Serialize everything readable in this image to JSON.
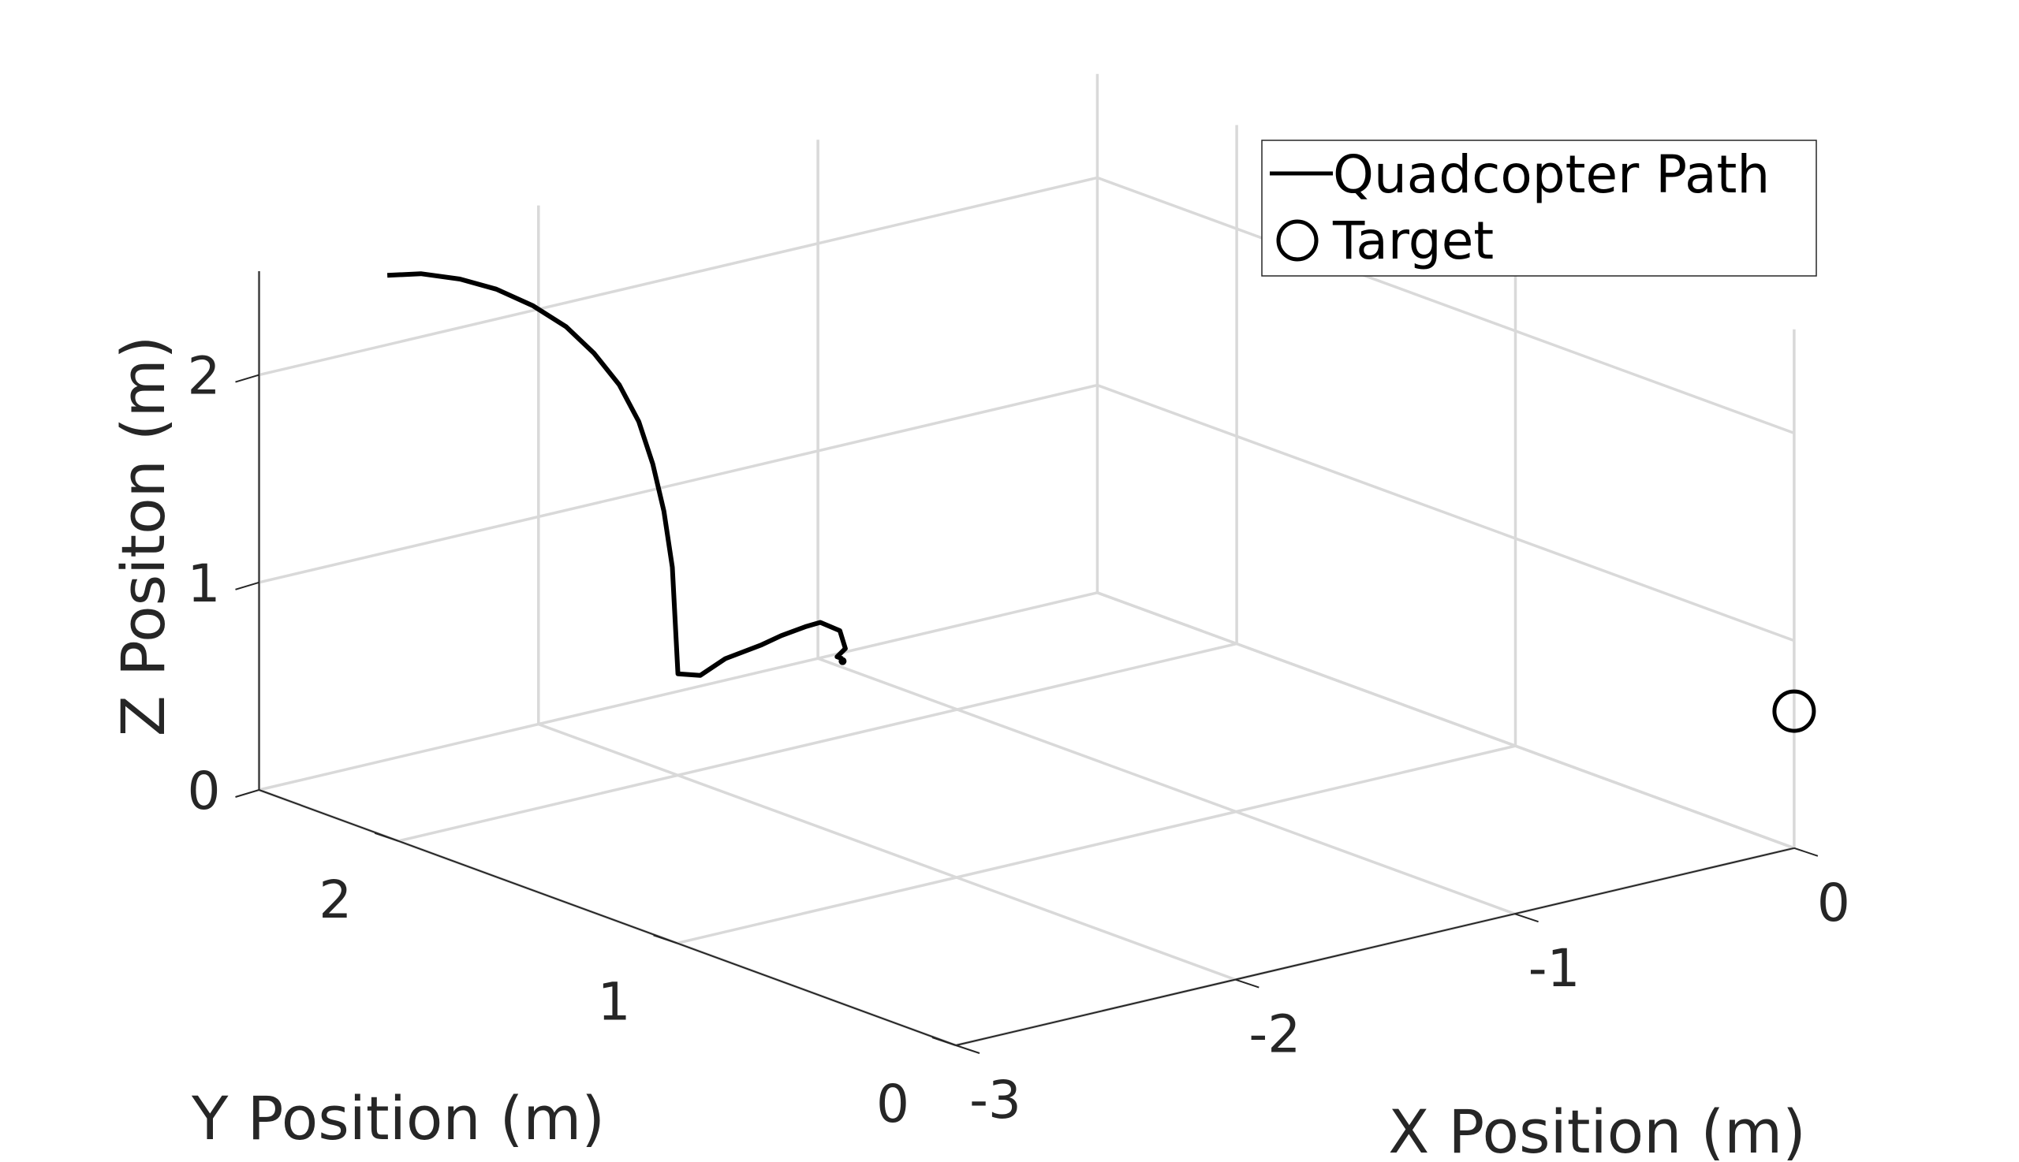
{
  "chart_data": {
    "type": "line",
    "view": "3d",
    "xlabel": "X Position (m)",
    "ylabel": "Y Position (m)",
    "zlabel": "Z Positon (m)",
    "xlim": [
      -3,
      0
    ],
    "ylim": [
      0,
      2.5
    ],
    "zlim": [
      0,
      2.5
    ],
    "xticks": [
      -3,
      -2,
      -1,
      0
    ],
    "yticks": [
      0,
      1,
      2
    ],
    "zticks": [
      0,
      1,
      2
    ],
    "xtick_labels": [
      "-3",
      "-2",
      "-1",
      "0"
    ],
    "ytick_labels": [
      "0",
      "1",
      "2"
    ],
    "ztick_labels": [
      "0",
      "1",
      "2"
    ],
    "grid": true,
    "legend": {
      "placement": "top-right",
      "entries": [
        "Quadcopter Path",
        "Target"
      ]
    },
    "series": [
      {
        "name": "Quadcopter Path",
        "style": "line",
        "color": "#000000",
        "points": [
          [
            -2.98,
            2.06,
            2.69
          ],
          [
            -2.86,
            2.06,
            2.66
          ],
          [
            -2.72,
            2.06,
            2.59
          ],
          [
            -2.59,
            2.06,
            2.5
          ],
          [
            -2.46,
            2.06,
            2.38
          ],
          [
            -2.34,
            2.06,
            2.24
          ],
          [
            -2.24,
            2.06,
            2.08
          ],
          [
            -2.15,
            2.06,
            1.9
          ],
          [
            -2.08,
            2.06,
            1.7
          ],
          [
            -2.03,
            2.06,
            1.48
          ],
          [
            -1.99,
            2.06,
            1.24
          ],
          [
            -1.96,
            2.06,
            0.96
          ],
          [
            -1.94,
            2.06,
            0.44
          ],
          [
            -1.9,
            2.02,
            0.44
          ],
          [
            -1.82,
            2.01,
            0.5
          ],
          [
            -1.72,
            1.98,
            0.55
          ],
          [
            -1.66,
            1.97,
            0.58
          ],
          [
            -1.6,
            1.94,
            0.62
          ],
          [
            -1.57,
            1.92,
            0.64
          ],
          [
            -1.54,
            1.88,
            0.61
          ],
          [
            -1.56,
            1.84,
            0.55
          ],
          [
            -1.59,
            1.84,
            0.52
          ],
          [
            -1.59,
            1.82,
            0.52
          ]
        ]
      },
      {
        "name": "Target",
        "style": "marker",
        "marker": "circle",
        "color": "#000000",
        "points": [
          [
            0,
            0,
            0.66
          ]
        ]
      }
    ]
  }
}
